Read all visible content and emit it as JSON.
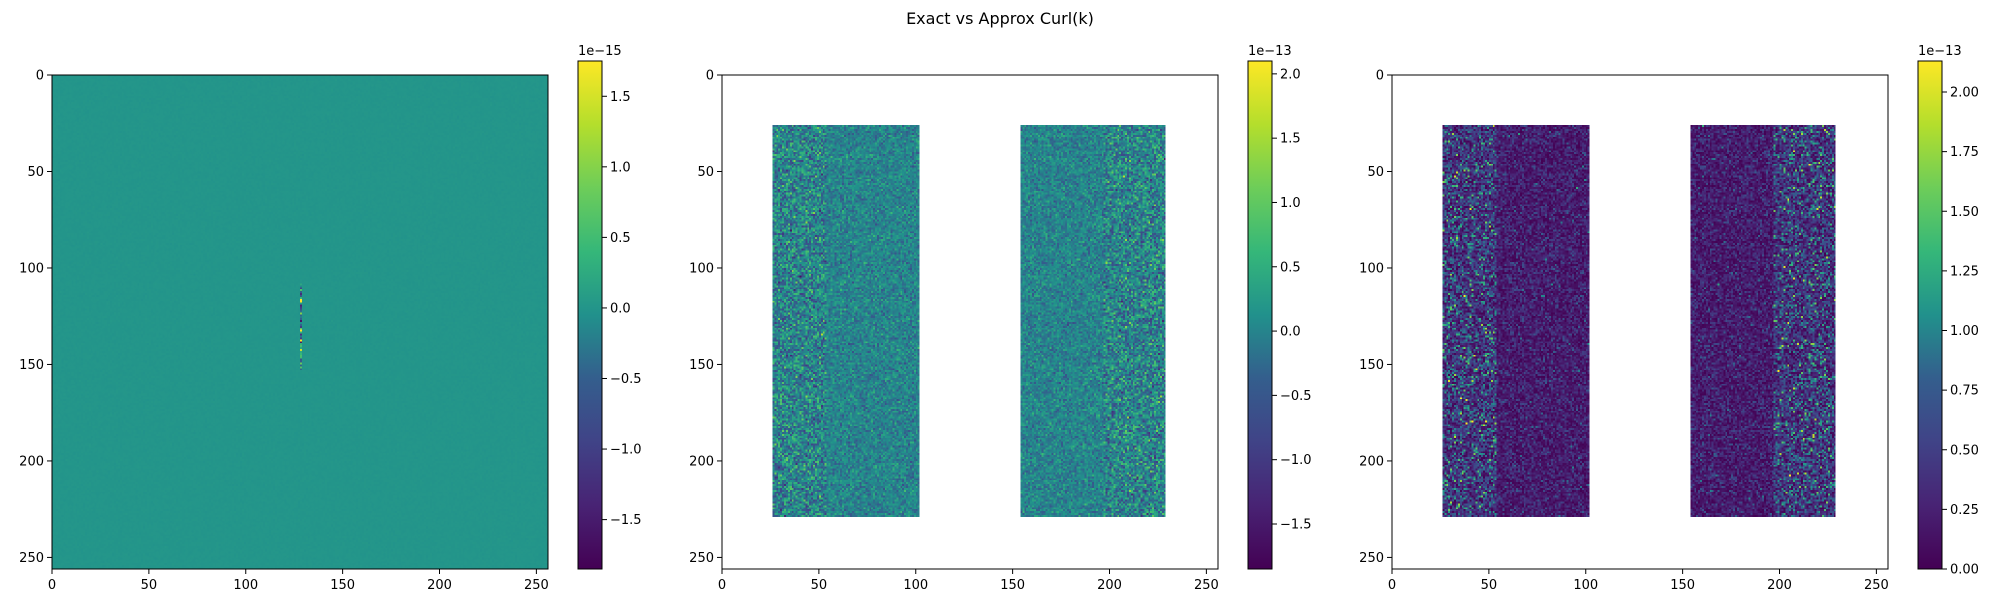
{
  "figure": {
    "suptitle": "Exact vs Approx Curl(k)"
  },
  "chart_data": [
    {
      "type": "heatmap",
      "panel": "left",
      "grid_size": 256,
      "x_ticks": [
        0,
        50,
        100,
        150,
        200,
        250
      ],
      "y_ticks": [
        0,
        50,
        100,
        150,
        200,
        250
      ],
      "xlim": [
        0,
        256
      ],
      "ylim": [
        256,
        0
      ],
      "cmap": "viridis",
      "background_value": 0.0,
      "spike": {
        "x": 128,
        "y_range": [
          108,
          152
        ]
      },
      "colorbar": {
        "exponent": "1e−15",
        "vmin": -1.85,
        "vmax": 1.75,
        "ticks": [
          -1.5,
          -1.0,
          -0.5,
          0.0,
          0.5,
          1.0,
          1.5
        ],
        "tick_labels": [
          "−1.5",
          "−1.0",
          "−0.5",
          "0.0",
          "0.5",
          "1.0",
          "1.5"
        ]
      }
    },
    {
      "type": "heatmap",
      "panel": "middle",
      "grid_size": 256,
      "x_ticks": [
        0,
        50,
        100,
        150,
        200,
        250
      ],
      "y_ticks": [
        0,
        50,
        100,
        150,
        200,
        250
      ],
      "xlim": [
        0,
        256
      ],
      "ylim": [
        256,
        0
      ],
      "cmap": "viridis",
      "regions": [
        {
          "x_range": [
            26,
            102
          ],
          "y_range": [
            26,
            229
          ]
        },
        {
          "x_range": [
            154,
            229
          ],
          "y_range": [
            26,
            229
          ]
        }
      ],
      "colorbar": {
        "exponent": "1e−13",
        "vmin": -1.85,
        "vmax": 2.1,
        "ticks": [
          -1.5,
          -1.0,
          -0.5,
          0.0,
          0.5,
          1.0,
          1.5,
          2.0
        ],
        "tick_labels": [
          "−1.5",
          "−1.0",
          "−0.5",
          "0.0",
          "0.5",
          "1.0",
          "1.5",
          "2.0"
        ]
      }
    },
    {
      "type": "heatmap",
      "panel": "right",
      "grid_size": 256,
      "x_ticks": [
        0,
        50,
        100,
        150,
        200,
        250
      ],
      "y_ticks": [
        0,
        50,
        100,
        150,
        200,
        250
      ],
      "xlim": [
        0,
        256
      ],
      "ylim": [
        256,
        0
      ],
      "cmap": "viridis",
      "regions": [
        {
          "x_range": [
            26,
            102
          ],
          "y_range": [
            26,
            229
          ]
        },
        {
          "x_range": [
            154,
            229
          ],
          "y_range": [
            26,
            229
          ]
        }
      ],
      "colorbar": {
        "exponent": "1e−13",
        "vmin": 0.0,
        "vmax": 2.13,
        "ticks": [
          0.0,
          0.25,
          0.5,
          0.75,
          1.0,
          1.25,
          1.5,
          1.75,
          2.0
        ],
        "tick_labels": [
          "0.00",
          "0.25",
          "0.50",
          "0.75",
          "1.00",
          "1.25",
          "1.50",
          "1.75",
          "2.00"
        ]
      }
    }
  ]
}
